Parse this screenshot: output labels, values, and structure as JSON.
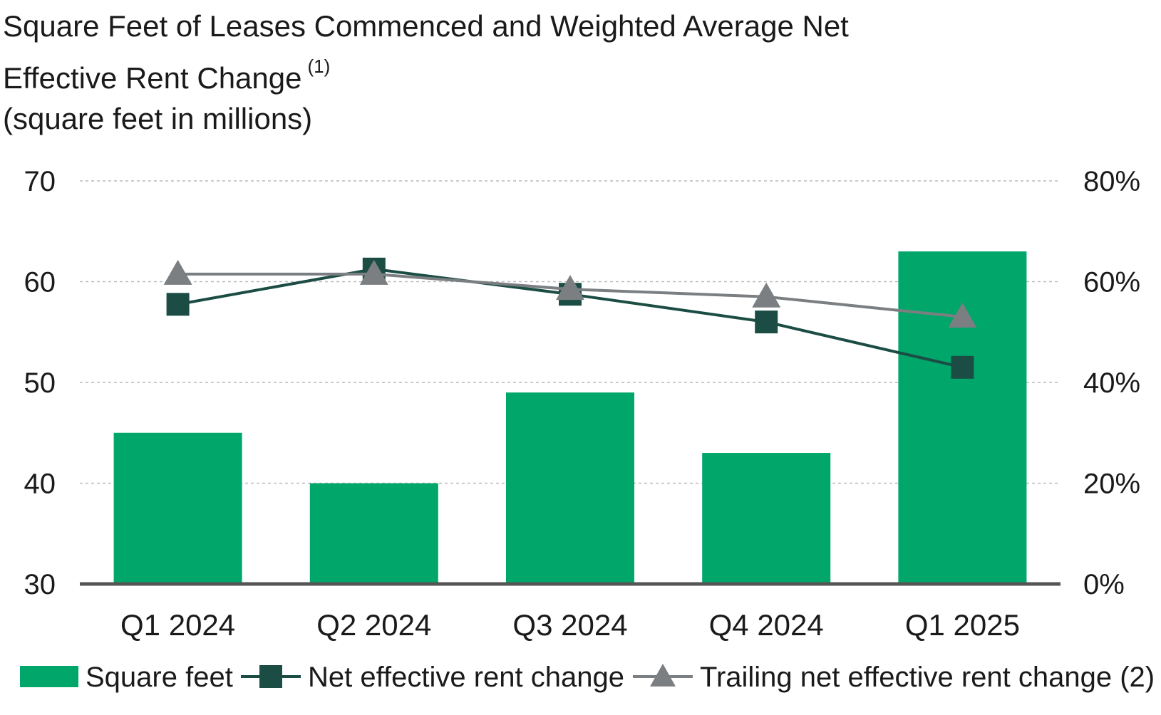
{
  "title": {
    "line1": "Square Feet of Leases Commenced and Weighted Average Net",
    "line2": "Effective Rent Change",
    "footnote": "(1)",
    "line3": "(square feet in millions)"
  },
  "colors": {
    "bar": "#00A66A",
    "net_line": "#1B4D45",
    "trailing_line": "#7B7F82",
    "grid": "#b9b9b9",
    "axis": "#555555"
  },
  "chart_data": {
    "type": "bar",
    "categories": [
      "Q1 2024",
      "Q2 2024",
      "Q3 2024",
      "Q4 2024",
      "Q1 2025"
    ],
    "series": [
      {
        "name": "Square feet",
        "type": "bar",
        "axis": "left",
        "values": [
          45,
          40,
          49,
          43,
          63
        ]
      },
      {
        "name": "Net effective rent change",
        "type": "line",
        "marker": "square",
        "axis": "right",
        "values": [
          0.555,
          0.625,
          0.575,
          0.52,
          0.43
        ]
      },
      {
        "name": "Trailing net effective rent change (2)",
        "type": "line",
        "marker": "triangle",
        "axis": "right",
        "values": [
          0.615,
          0.615,
          0.585,
          0.57,
          0.53
        ]
      }
    ],
    "y_left": {
      "min": 30,
      "max": 70,
      "ticks": [
        "30",
        "40",
        "50",
        "60",
        "70"
      ],
      "tick_values": [
        30,
        40,
        50,
        60,
        70
      ]
    },
    "y_right": {
      "min": 0,
      "max": 0.8,
      "ticks": [
        "0%",
        "20%",
        "40%",
        "60%",
        "80%"
      ],
      "tick_values": [
        0,
        0.2,
        0.4,
        0.6,
        0.8
      ]
    },
    "grid": true,
    "legend": "bottom"
  }
}
